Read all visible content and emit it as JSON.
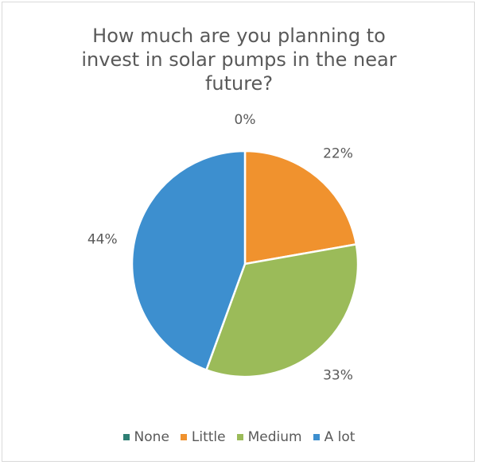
{
  "chart_data": {
    "type": "pie",
    "title_lines": [
      "How much are you planning to",
      "invest in solar pumps in the near",
      "future?"
    ],
    "categories": [
      "None",
      "Little",
      "Medium",
      "A lot"
    ],
    "values": [
      0,
      22,
      33,
      44
    ],
    "data_labels": [
      "0%",
      "22%",
      "33%",
      "44%"
    ],
    "colors": [
      "#2e7f74",
      "#f0922e",
      "#9bbb59",
      "#3d8fcf"
    ],
    "legend_position": "bottom"
  }
}
